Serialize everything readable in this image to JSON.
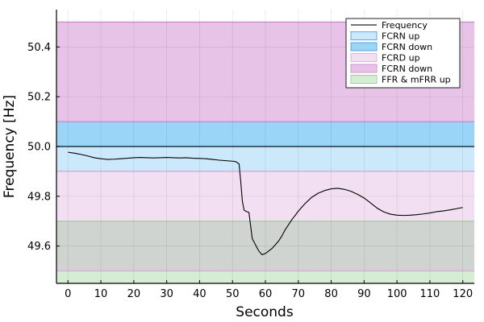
{
  "chart_data": {
    "type": "line",
    "xlabel": "Seconds",
    "ylabel": "Frequency [Hz]",
    "xlim": [
      -3.5,
      123.5
    ],
    "ylim": [
      49.45,
      50.55
    ],
    "xticks": [
      0,
      10,
      20,
      30,
      40,
      50,
      60,
      70,
      80,
      90,
      100,
      110,
      120
    ],
    "xtick_labels": [
      "0",
      "10",
      "20",
      "30",
      "40",
      "50",
      "60",
      "70",
      "80",
      "90",
      "100",
      "110",
      "120"
    ],
    "yticks": [
      49.6,
      49.8,
      50.0,
      50.2,
      50.4
    ],
    "ytick_labels": [
      "49.6",
      "49.8",
      "50.0",
      "50.2",
      "50.4"
    ],
    "grid": true,
    "legend_position": "top-right",
    "bands": [
      {
        "name": "FCRN up",
        "y0": 49.9,
        "y1": 50.0,
        "fill": "#cce9fb",
        "edge": "#4f9fe0"
      },
      {
        "name": "FCRN down",
        "y0": 50.0,
        "y1": 50.1,
        "fill": "#9ad5f7",
        "edge": "#4f9fe0"
      },
      {
        "name": "FCRD up",
        "y0": 49.5,
        "y1": 49.9,
        "fill": "#f2dff2",
        "edge": "#d9b0d9"
      },
      {
        "name": "FCRN down",
        "y0": 50.1,
        "y1": 50.5,
        "fill": "#e8c3e8",
        "edge": "#cc8fcc"
      },
      {
        "name": "FFR & mFRR up",
        "y0": 49.45,
        "y1": 49.7,
        "fill": "#d5ecd5",
        "edge": "#9ccc9c"
      }
    ],
    "overlap": {
      "y0": 49.5,
      "y1": 49.7,
      "fill": "#cfd4d1"
    },
    "reference_line": {
      "y": 50.0,
      "color": "#222222"
    },
    "series": [
      {
        "name": "Frequency",
        "color": "#000000",
        "x": [
          0,
          2,
          4,
          6,
          8,
          10,
          12,
          14,
          16,
          18,
          20,
          22,
          24,
          26,
          28,
          30,
          32,
          34,
          36,
          38,
          40,
          42,
          44,
          46,
          48,
          50,
          51,
          52,
          52.5,
          53,
          53.5,
          54,
          55,
          56,
          57,
          58,
          59,
          60,
          61,
          62,
          63,
          64,
          65,
          66,
          68,
          70,
          72,
          74,
          76,
          78,
          80,
          82,
          84,
          86,
          88,
          90,
          92,
          94,
          96,
          98,
          100,
          102,
          104,
          106,
          108,
          110,
          112,
          114,
          116,
          118,
          120
        ],
        "y": [
          49.977,
          49.973,
          49.968,
          49.962,
          49.955,
          49.951,
          49.948,
          49.949,
          49.951,
          49.953,
          49.955,
          49.956,
          49.955,
          49.954,
          49.955,
          49.956,
          49.955,
          49.954,
          49.955,
          49.953,
          49.952,
          49.951,
          49.948,
          49.945,
          49.943,
          49.941,
          49.939,
          49.93,
          49.86,
          49.78,
          49.745,
          49.74,
          49.735,
          49.63,
          49.605,
          49.58,
          49.565,
          49.57,
          49.58,
          49.59,
          49.605,
          49.62,
          49.64,
          49.665,
          49.705,
          49.74,
          49.77,
          49.795,
          49.812,
          49.823,
          49.83,
          49.832,
          49.828,
          49.82,
          49.808,
          49.793,
          49.773,
          49.752,
          49.737,
          49.728,
          49.724,
          49.723,
          49.724,
          49.726,
          49.729,
          49.733,
          49.738,
          49.741,
          49.745,
          49.75,
          49.755
        ]
      }
    ],
    "legend": [
      {
        "label": "Frequency",
        "kind": "line",
        "color": "#222222"
      },
      {
        "label": "FCRN up",
        "kind": "patch",
        "fill": "#cce9fb",
        "edge": "#4f9fe0"
      },
      {
        "label": "FCRN down",
        "kind": "patch",
        "fill": "#9ad5f7",
        "edge": "#4f9fe0"
      },
      {
        "label": "FCRD up",
        "kind": "patch",
        "fill": "#f2dff2",
        "edge": "#d9b0d9"
      },
      {
        "label": "FCRN down",
        "kind": "patch",
        "fill": "#e8c3e8",
        "edge": "#cc8fcc"
      },
      {
        "label": "FFR & mFRR up",
        "kind": "patch",
        "fill": "#d5ecd5",
        "edge": "#9ccc9c"
      }
    ]
  }
}
